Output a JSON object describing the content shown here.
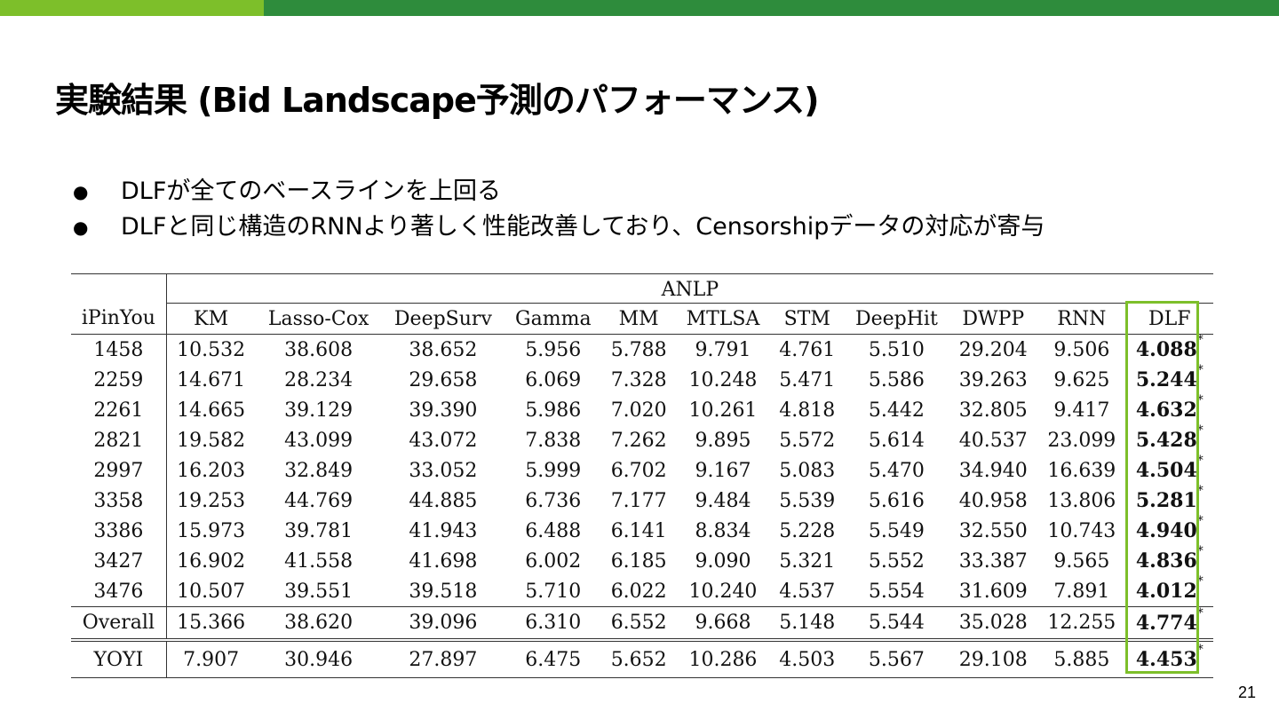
{
  "slide": {
    "title": "実験結果 (Bid Landscape予測のパフォーマンス)",
    "page_number": "21",
    "accent_colors": {
      "bar_light": "#7dbf2a",
      "bar_dark": "#2e8c3c",
      "highlight_box": "#7dbf2a"
    }
  },
  "bullets": [
    "DLFが全てのベースラインを上回る",
    "DLFと同じ構造のRNNより著しく性能改善しており、Censorshipデータの対応が寄与"
  ],
  "table": {
    "group_header": "ANLP",
    "row_header_label": "iPinYou",
    "columns": [
      "KM",
      "Lasso-Cox",
      "DeepSurv",
      "Gamma",
      "MM",
      "MTLSA",
      "STM",
      "DeepHit",
      "DWPP",
      "RNN",
      "DLF"
    ],
    "significance_mark": "*",
    "rows": [
      {
        "id": "1458",
        "values": [
          "10.532",
          "38.608",
          "38.652",
          "5.956",
          "5.788",
          "9.791",
          "4.761",
          "5.510",
          "29.204",
          "9.506",
          "4.088"
        ]
      },
      {
        "id": "2259",
        "values": [
          "14.671",
          "28.234",
          "29.658",
          "6.069",
          "7.328",
          "10.248",
          "5.471",
          "5.586",
          "39.263",
          "9.625",
          "5.244"
        ]
      },
      {
        "id": "2261",
        "values": [
          "14.665",
          "39.129",
          "39.390",
          "5.986",
          "7.020",
          "10.261",
          "4.818",
          "5.442",
          "32.805",
          "9.417",
          "4.632"
        ]
      },
      {
        "id": "2821",
        "values": [
          "19.582",
          "43.099",
          "43.072",
          "7.838",
          "7.262",
          "9.895",
          "5.572",
          "5.614",
          "40.537",
          "23.099",
          "5.428"
        ]
      },
      {
        "id": "2997",
        "values": [
          "16.203",
          "32.849",
          "33.052",
          "5.999",
          "6.702",
          "9.167",
          "5.083",
          "5.470",
          "34.940",
          "16.639",
          "4.504"
        ]
      },
      {
        "id": "3358",
        "values": [
          "19.253",
          "44.769",
          "44.885",
          "6.736",
          "7.177",
          "9.484",
          "5.539",
          "5.616",
          "40.958",
          "13.806",
          "5.281"
        ]
      },
      {
        "id": "3386",
        "values": [
          "15.973",
          "39.781",
          "41.943",
          "6.488",
          "6.141",
          "8.834",
          "5.228",
          "5.549",
          "32.550",
          "10.743",
          "4.940"
        ]
      },
      {
        "id": "3427",
        "values": [
          "16.902",
          "41.558",
          "41.698",
          "6.002",
          "6.185",
          "9.090",
          "5.321",
          "5.552",
          "33.387",
          "9.565",
          "4.836"
        ]
      },
      {
        "id": "3476",
        "values": [
          "10.507",
          "39.551",
          "39.518",
          "5.710",
          "6.022",
          "10.240",
          "4.537",
          "5.554",
          "31.609",
          "7.891",
          "4.012"
        ]
      }
    ],
    "overall": {
      "id": "Overall",
      "values": [
        "15.366",
        "38.620",
        "39.096",
        "6.310",
        "6.552",
        "9.668",
        "5.148",
        "5.544",
        "35.028",
        "12.255",
        "4.774"
      ]
    },
    "yoyi": {
      "id": "YOYI",
      "values": [
        "7.907",
        "30.946",
        "27.897",
        "6.475",
        "5.652",
        "10.286",
        "4.503",
        "5.567",
        "29.108",
        "5.885",
        "4.453"
      ]
    }
  }
}
